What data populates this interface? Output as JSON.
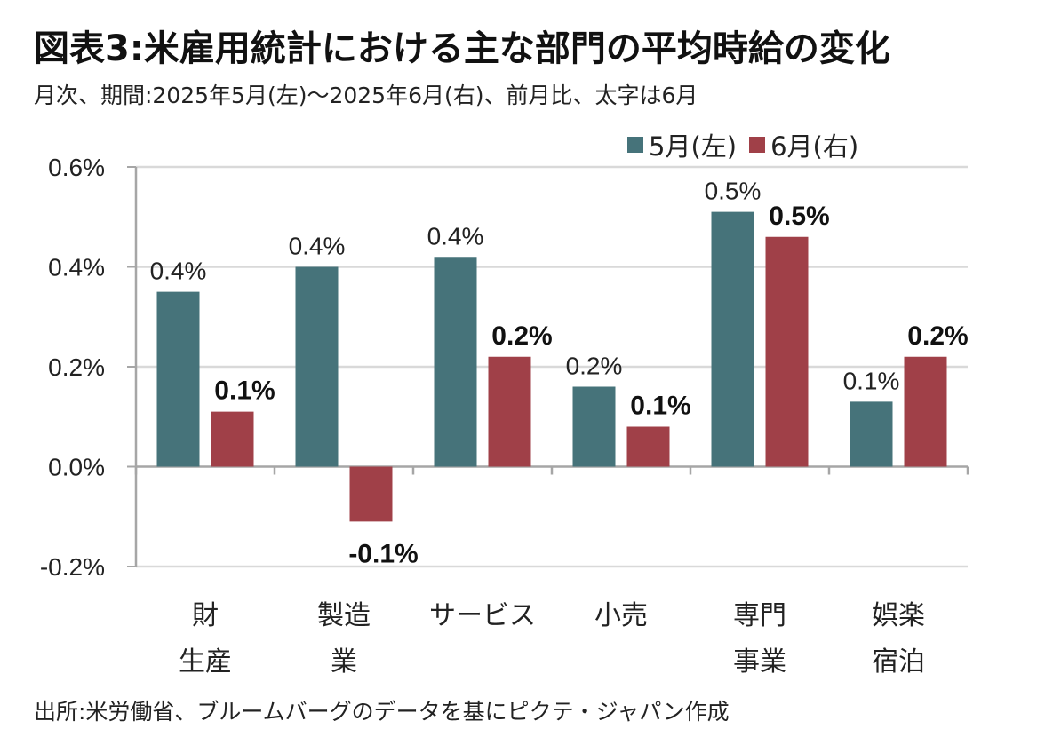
{
  "header": {
    "title": "図表3:米雇用統計における主な部門の平均時給の変化",
    "subtitle": "月次、期間:2025年5月(左)～2025年6月(右)、前月比、太字は6月"
  },
  "footer": {
    "source": "出所:米労働省、ブルームバーグのデータを基にピクテ・ジャパン作成"
  },
  "colors": {
    "may": "#46737A",
    "june": "#A04048",
    "grid": "#D9D9D9",
    "axis": "#A6A6A6"
  },
  "chart_data": {
    "type": "bar",
    "title": "図表3:米雇用統計における主な部門の平均時給の変化",
    "subtitle": "月次、期間:2025年5月(左)～2025年6月(右)、前月比、太字は6月",
    "xlabel": "",
    "ylabel": "",
    "ylim": [
      -0.2,
      0.6
    ],
    "yticks": [
      -0.2,
      0.0,
      0.2,
      0.4,
      0.6
    ],
    "ytick_labels": [
      "-0.2%",
      "0.0%",
      "0.2%",
      "0.4%",
      "0.6%"
    ],
    "grid": true,
    "legend_position": "top-right",
    "categories": [
      [
        "財",
        "生産"
      ],
      [
        "製造",
        "業"
      ],
      [
        "サービス"
      ],
      [
        "小売"
      ],
      [
        "専門",
        "事業"
      ],
      [
        "娯楽",
        "宿泊"
      ]
    ],
    "series": [
      {
        "name": "5月(左)",
        "color_key": "may",
        "values": [
          0.35,
          0.4,
          0.42,
          0.16,
          0.51,
          0.13
        ],
        "labels": [
          "0.4%",
          "0.4%",
          "0.4%",
          "0.2%",
          "0.5%",
          "0.1%"
        ],
        "bold": false
      },
      {
        "name": "6月(右)",
        "color_key": "june",
        "values": [
          0.11,
          -0.11,
          0.22,
          0.08,
          0.46,
          0.22
        ],
        "labels": [
          "0.1%",
          "-0.1%",
          "0.2%",
          "0.1%",
          "0.5%",
          "0.2%"
        ],
        "bold": true
      }
    ]
  }
}
